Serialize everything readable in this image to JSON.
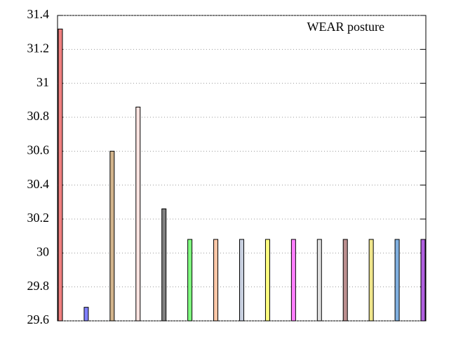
{
  "chart_data": {
    "type": "bar",
    "annotation": "WEAR posture",
    "categories": [
      null,
      null,
      null,
      null,
      null,
      null,
      null,
      null,
      null,
      null,
      null,
      null,
      null,
      null,
      null
    ],
    "values": [
      31.32,
      29.68,
      30.6,
      30.86,
      30.26,
      30.08,
      30.08,
      30.08,
      30.08,
      30.08,
      30.08,
      30.08,
      30.08,
      30.08,
      30.08
    ],
    "colors": [
      "#f08080",
      "#8080ff",
      "#d2b48c",
      "#ffe4e1",
      "#808080",
      "#80ff80",
      "#ffc8a8",
      "#c8d0e0",
      "#ffff80",
      "#ff80ff",
      "#e0e0e0",
      "#bc8f8f",
      "#f0e68c",
      "#80b0e0",
      "#b060e0"
    ],
    "ylim": [
      29.6,
      31.4
    ],
    "yticks": [
      29.6,
      29.8,
      30,
      30.2,
      30.4,
      30.6,
      30.8,
      31,
      31.2,
      31.4
    ],
    "grid": true
  }
}
